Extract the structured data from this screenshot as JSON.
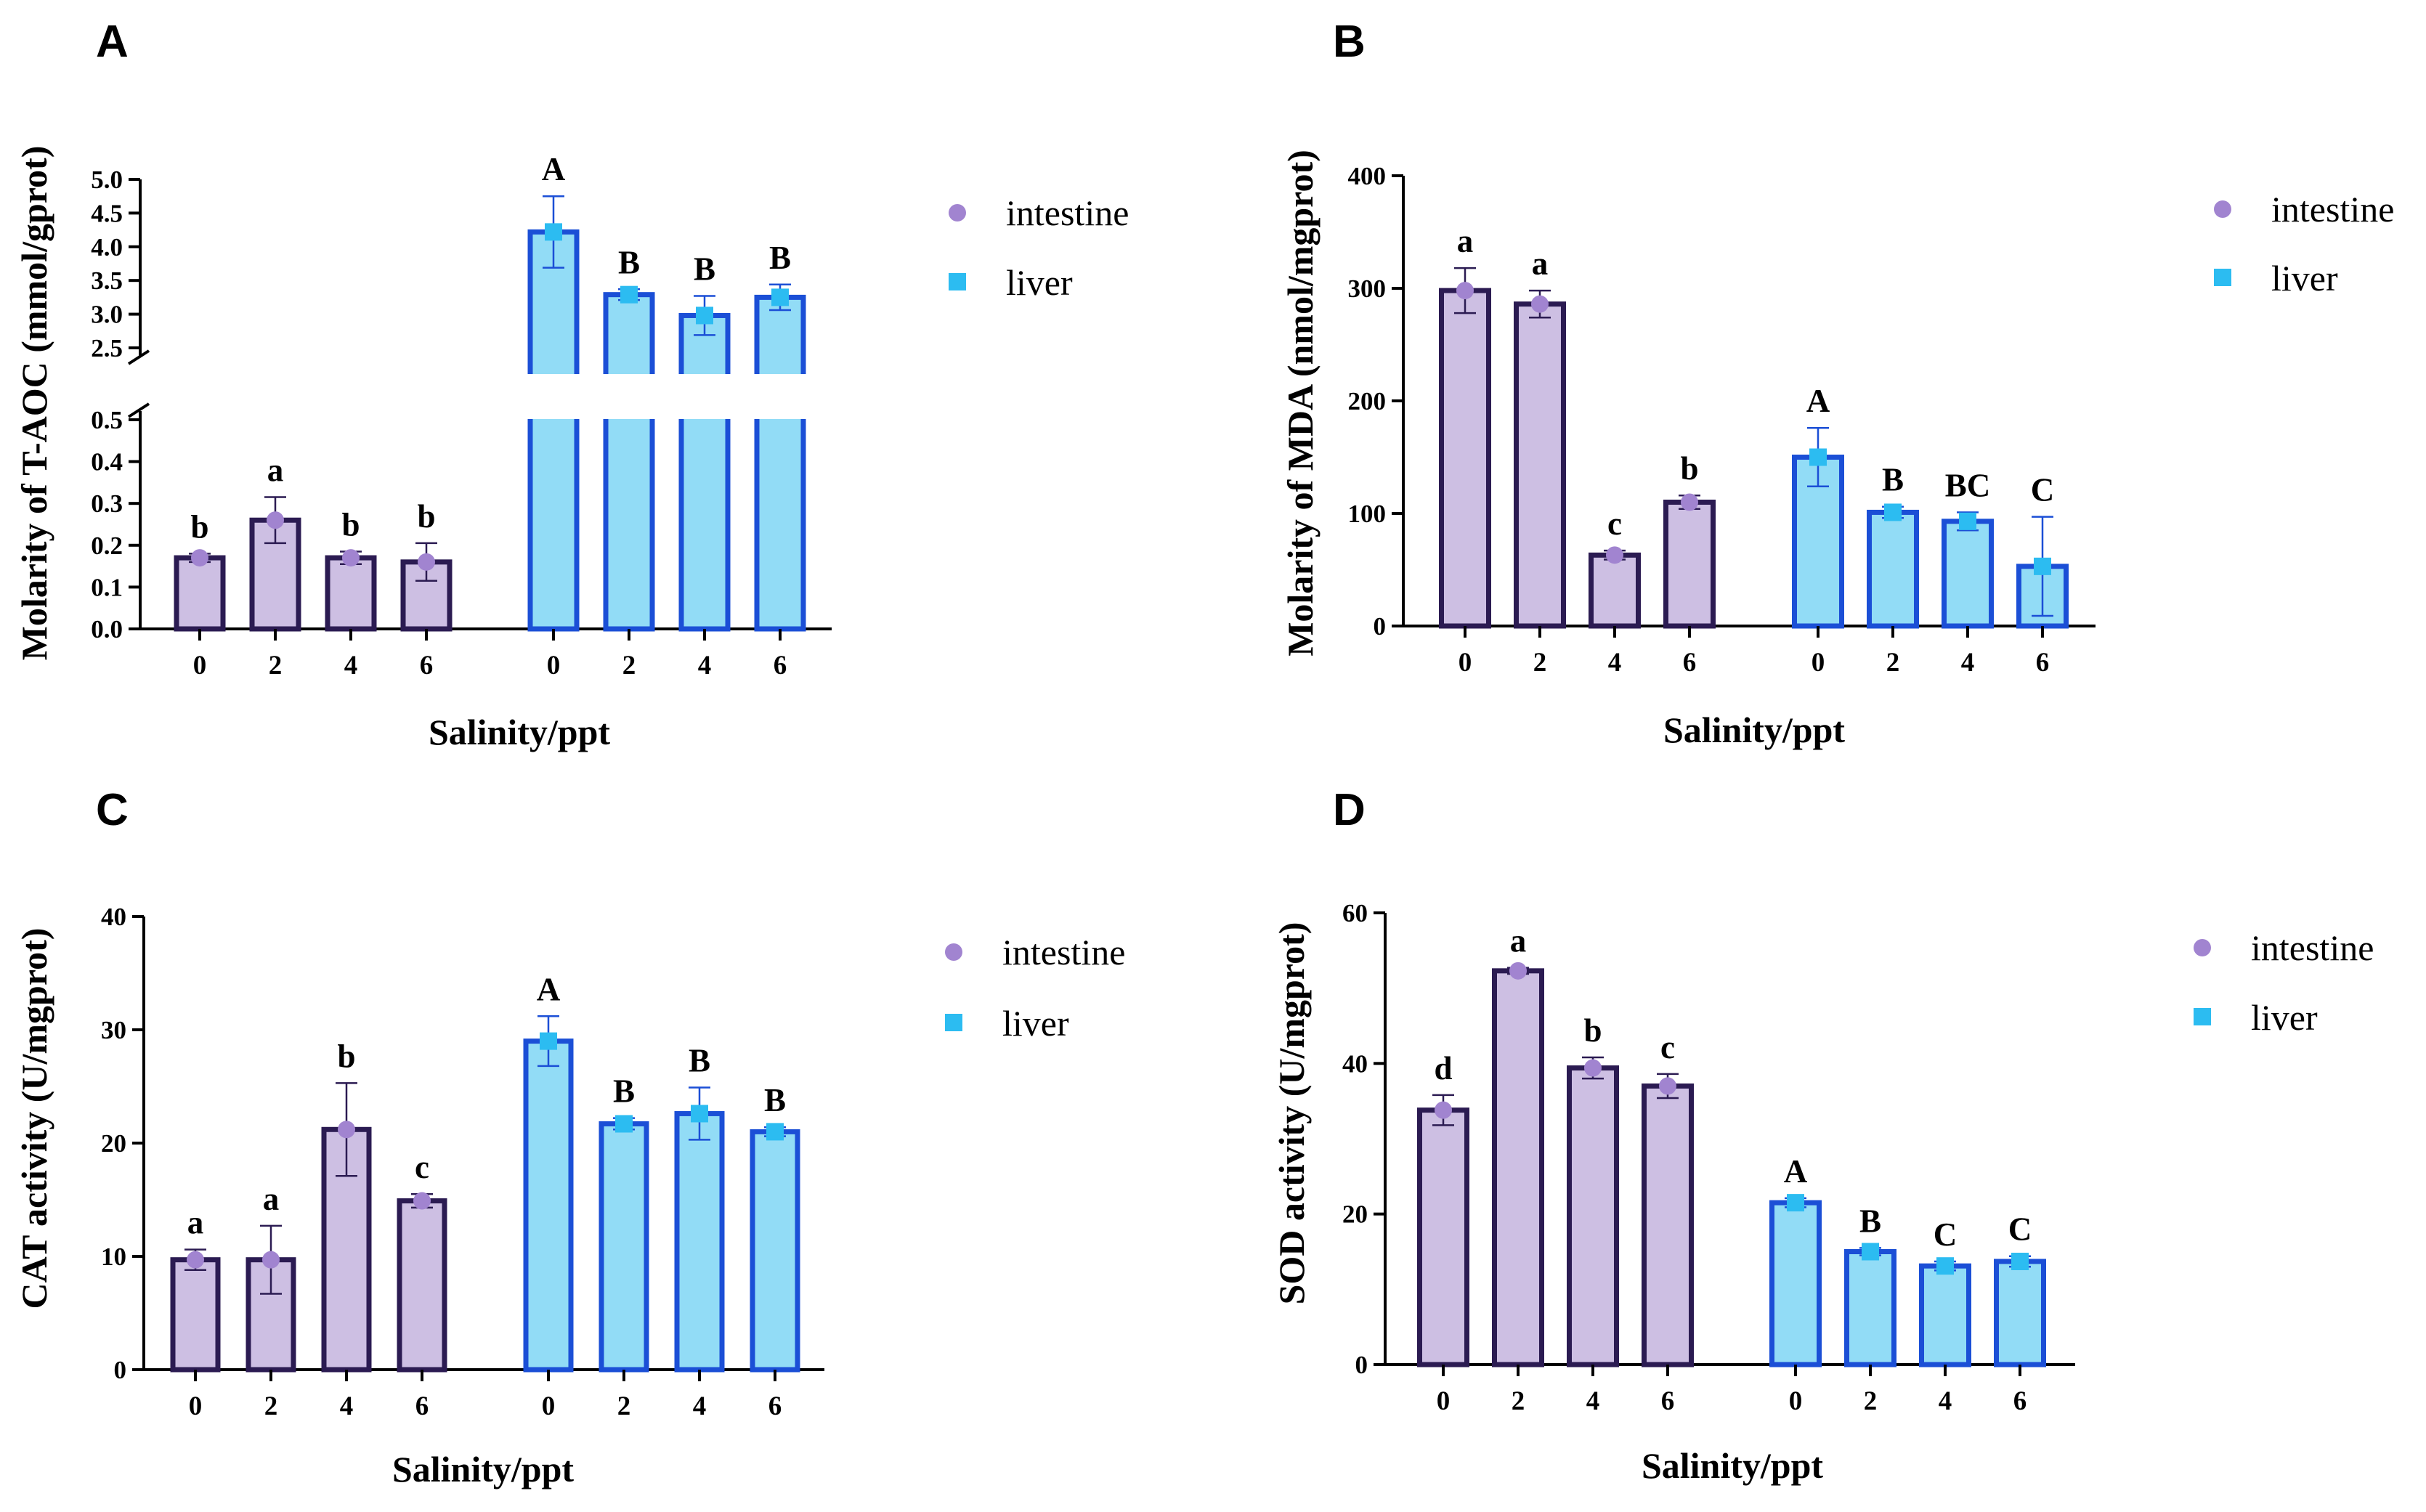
{
  "figure": {
    "panels": [
      "A",
      "B",
      "C",
      "D"
    ],
    "legend": {
      "series": [
        "intestine",
        "liver"
      ]
    },
    "x_title": "Salinity/ppt"
  },
  "colors": {
    "intestine_fill": "#cdbfe3",
    "intestine_edge": "#2b1b52",
    "intestine_marker": "#a184d0",
    "liver_fill": "#92dcf6",
    "liver_edge": "#1b4fd6",
    "liver_marker": "#2cbcf1",
    "axis": "#000000"
  },
  "chart_data": [
    {
      "panel": "A",
      "type": "bar",
      "title": "",
      "ylabel": "Molarity of T-AOC (mmol/gprot)",
      "xlabel": "Salinity/ppt",
      "categories": [
        "0",
        "2",
        "4",
        "6"
      ],
      "y_axis_break": {
        "lower_range": [
          0.0,
          0.5
        ],
        "upper_range": [
          2.5,
          5.0
        ]
      },
      "yticks_lower": [
        "0.0",
        "0.1",
        "0.2",
        "0.3",
        "0.4",
        "0.5"
      ],
      "yticks_upper": [
        "2.5",
        "3.0",
        "3.5",
        "4.0",
        "4.5",
        "5.0"
      ],
      "series": [
        {
          "name": "intestine",
          "values": [
            0.17,
            0.26,
            0.17,
            0.16
          ],
          "errors": [
            0.01,
            0.055,
            0.015,
            0.045
          ],
          "letters": [
            "b",
            "a",
            "b",
            "b"
          ]
        },
        {
          "name": "liver",
          "values": [
            4.22,
            3.29,
            2.98,
            3.25
          ],
          "errors": [
            0.53,
            0.08,
            0.29,
            0.19
          ],
          "letters": [
            "A",
            "B",
            "B",
            "B"
          ]
        }
      ]
    },
    {
      "panel": "B",
      "type": "bar",
      "title": "",
      "ylabel": "Molarity of MDA (nmol/mgprot)",
      "xlabel": "Salinity/ppt",
      "categories": [
        "0",
        "2",
        "4",
        "6"
      ],
      "ylim": [
        0,
        400
      ],
      "yticks": [
        "0",
        "100",
        "200",
        "300",
        "400"
      ],
      "series": [
        {
          "name": "intestine",
          "values": [
            298,
            286,
            63,
            110
          ],
          "errors": [
            20,
            12,
            4,
            6
          ],
          "letters": [
            "a",
            "a",
            "c",
            "b"
          ]
        },
        {
          "name": "liver",
          "values": [
            150,
            101,
            93,
            53
          ],
          "errors": [
            26,
            5,
            8,
            44
          ],
          "letters": [
            "A",
            "B",
            "BC",
            "C"
          ]
        }
      ]
    },
    {
      "panel": "C",
      "type": "bar",
      "title": "",
      "ylabel": "CAT activity (U/mgprot)",
      "xlabel": "Salinity/ppt",
      "categories": [
        "0",
        "2",
        "4",
        "6"
      ],
      "ylim": [
        0,
        40
      ],
      "yticks": [
        "0",
        "10",
        "20",
        "30",
        "40"
      ],
      "series": [
        {
          "name": "intestine",
          "values": [
            9.7,
            9.7,
            21.2,
            14.9
          ],
          "errors": [
            0.9,
            3.0,
            4.1,
            0.6
          ],
          "letters": [
            "a",
            "a",
            "b",
            "c"
          ]
        },
        {
          "name": "liver",
          "values": [
            29.0,
            21.7,
            22.6,
            21.0
          ],
          "errors": [
            2.2,
            0.5,
            2.3,
            0.4
          ],
          "letters": [
            "A",
            "B",
            "B",
            "B"
          ]
        }
      ]
    },
    {
      "panel": "D",
      "type": "bar",
      "title": "",
      "ylabel": "SOD activity (U/mgprot)",
      "xlabel": "Salinity/ppt",
      "categories": [
        "0",
        "2",
        "4",
        "6"
      ],
      "ylim": [
        0,
        60
      ],
      "yticks": [
        "0",
        "20",
        "40",
        "60"
      ],
      "series": [
        {
          "name": "intestine",
          "values": [
            33.8,
            52.3,
            39.4,
            37.0
          ],
          "errors": [
            2.0,
            0.4,
            1.4,
            1.6
          ],
          "letters": [
            "d",
            "a",
            "b",
            "c"
          ]
        },
        {
          "name": "liver",
          "values": [
            21.5,
            15.0,
            13.1,
            13.7
          ],
          "errors": [
            0.6,
            0.5,
            0.6,
            0.7
          ],
          "letters": [
            "A",
            "B",
            "C",
            "C"
          ]
        }
      ]
    }
  ]
}
